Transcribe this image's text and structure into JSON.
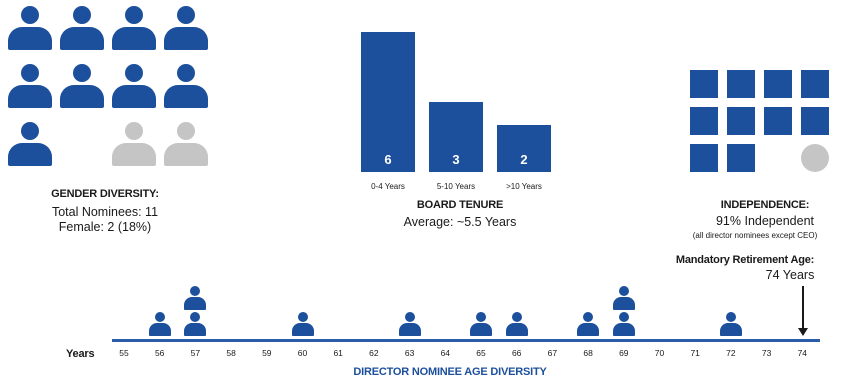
{
  "colors": {
    "primary": "#1c4f9c",
    "muted": "#c5c5c5",
    "axis": "#2a5caa"
  },
  "gender": {
    "title": "GENDER DIVERSITY:",
    "line1": "Total Nominees: 11",
    "line2": "Female: 2 (18%)",
    "total": 11,
    "female": 2,
    "icon": "person-icon"
  },
  "tenure": {
    "title": "BOARD TENURE",
    "subtitle": "Average: ~5.5 Years"
  },
  "independence": {
    "title": "INDEPENDENCE:",
    "line1": "91% Independent",
    "note": "(all director nominees except CEO)",
    "independent": 10,
    "total": 11
  },
  "retirement": {
    "title": "Mandatory Retirement Age:",
    "value": "74 Years",
    "age": 74
  },
  "chart_data": [
    {
      "type": "bar",
      "title": "BOARD TENURE",
      "categories": [
        "0-4 Years",
        "5-10 Years",
        ">10 Years"
      ],
      "values": [
        6,
        3,
        2
      ]
    },
    {
      "type": "scatter",
      "title": "DIRECTOR NOMINEE AGE DIVERSITY",
      "xlabel": "Years",
      "x_ticks": [
        "55",
        "56",
        "57",
        "58",
        "59",
        "60",
        "61",
        "62",
        "63",
        "64",
        "65",
        "66",
        "67",
        "68",
        "69",
        "70",
        "71",
        "72",
        "73",
        "74"
      ],
      "counts": {
        "56": 1,
        "57": 2,
        "60": 1,
        "63": 1,
        "65": 1,
        "66": 1,
        "68": 1,
        "69": 2,
        "72": 1
      },
      "xlim": [
        55,
        74
      ]
    }
  ]
}
